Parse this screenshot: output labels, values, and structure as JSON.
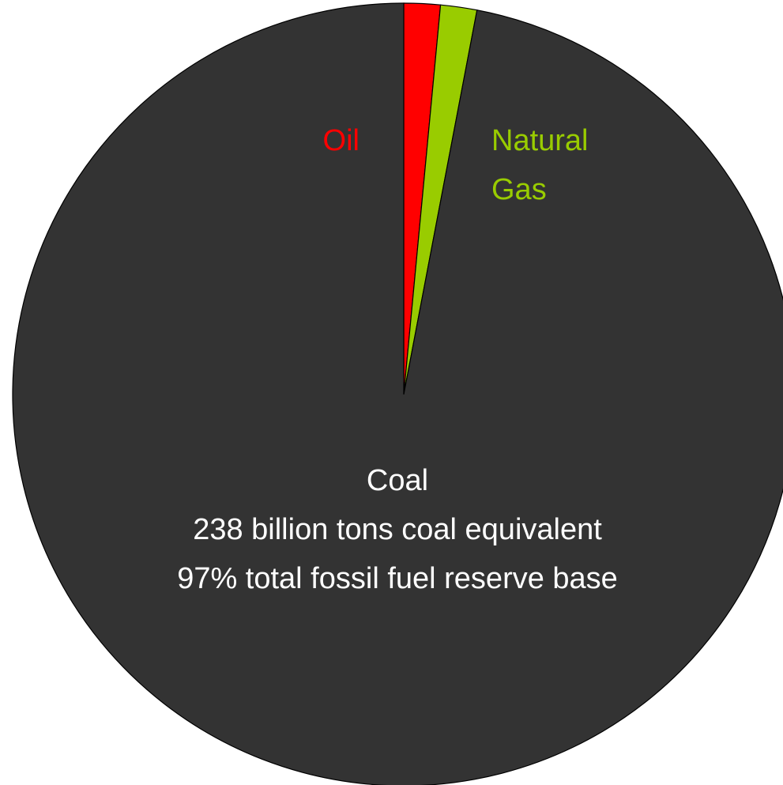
{
  "chart_data": {
    "type": "pie",
    "categories": [
      [
        "Oil"
      ],
      [
        "Natural",
        "Gas"
      ],
      [
        "Coal",
        "238 billion tons coal equivalent",
        "97% total fossil fuel reserve base"
      ]
    ],
    "values": [
      1.5,
      1.5,
      97
    ],
    "colors": [
      "#ff0000",
      "#99cc00",
      "#333333"
    ],
    "label_colors": [
      "#ff0000",
      "#99cc00",
      "#ffffff"
    ]
  }
}
